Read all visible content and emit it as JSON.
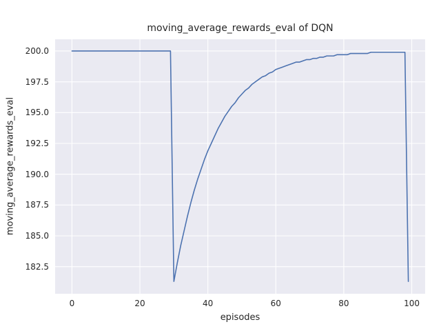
{
  "figure": {
    "title": "moving_average_rewards_eval of DQN",
    "xlabel": "episodes",
    "ylabel": "moving_average_rewards_eval"
  },
  "style": {
    "figure_bg": "#ffffff",
    "axes_bg": "#eaeaf2",
    "grid_color": "#ffffff",
    "line_color": "#4c72b0",
    "text_color": "#262626"
  },
  "chart_data": {
    "type": "line",
    "title": "moving_average_rewards_eval of DQN",
    "xlabel": "episodes",
    "ylabel": "moving_average_rewards_eval",
    "xlim": [
      -4.95,
      103.95
    ],
    "ylim": [
      180.3,
      200.95
    ],
    "x_ticks": [
      0,
      20,
      40,
      60,
      80,
      100
    ],
    "x_tick_labels": [
      "0",
      "20",
      "40",
      "60",
      "80",
      "100"
    ],
    "y_ticks": [
      182.5,
      185.0,
      187.5,
      190.0,
      192.5,
      195.0,
      197.5,
      200.0
    ],
    "y_tick_labels": [
      "182.5",
      "185.0",
      "187.5",
      "190.0",
      "192.5",
      "195.0",
      "197.5",
      "200.0"
    ],
    "grid": true,
    "legend": false,
    "series": [
      {
        "name": "DQN moving average eval reward",
        "x": [
          0,
          1,
          2,
          3,
          4,
          5,
          6,
          7,
          8,
          9,
          10,
          11,
          12,
          13,
          14,
          15,
          16,
          17,
          18,
          19,
          20,
          21,
          22,
          23,
          24,
          25,
          26,
          27,
          28,
          29,
          30,
          31,
          32,
          33,
          34,
          35,
          36,
          37,
          38,
          39,
          40,
          41,
          42,
          43,
          44,
          45,
          46,
          47,
          48,
          49,
          50,
          51,
          52,
          53,
          54,
          55,
          56,
          57,
          58,
          59,
          60,
          61,
          62,
          63,
          64,
          65,
          66,
          67,
          68,
          69,
          70,
          71,
          72,
          73,
          74,
          75,
          76,
          77,
          78,
          79,
          80,
          81,
          82,
          83,
          84,
          85,
          86,
          87,
          88,
          89,
          90,
          91,
          92,
          93,
          94,
          95,
          96,
          97,
          98,
          99
        ],
        "y": [
          200.0,
          200.0,
          200.0,
          200.0,
          200.0,
          200.0,
          200.0,
          200.0,
          200.0,
          200.0,
          200.0,
          200.0,
          200.0,
          200.0,
          200.0,
          200.0,
          200.0,
          200.0,
          200.0,
          200.0,
          200.0,
          200.0,
          200.0,
          200.0,
          200.0,
          200.0,
          200.0,
          200.0,
          200.0,
          200.0,
          181.3,
          182.8,
          184.2,
          185.4,
          186.6,
          187.7,
          188.7,
          189.6,
          190.4,
          191.2,
          191.9,
          192.5,
          193.1,
          193.7,
          194.2,
          194.7,
          195.1,
          195.5,
          195.8,
          196.2,
          196.5,
          196.8,
          197.0,
          197.3,
          197.5,
          197.7,
          197.9,
          198.0,
          198.2,
          198.3,
          198.5,
          198.6,
          198.7,
          198.8,
          198.9,
          199.0,
          199.1,
          199.1,
          199.2,
          199.3,
          199.3,
          199.4,
          199.4,
          199.5,
          199.5,
          199.6,
          199.6,
          199.6,
          199.7,
          199.7,
          199.7,
          199.7,
          199.8,
          199.8,
          199.8,
          199.8,
          199.8,
          199.8,
          199.9,
          199.9,
          199.9,
          199.9,
          199.9,
          199.9,
          199.9,
          199.9,
          199.9,
          199.9,
          199.9,
          181.3
        ]
      }
    ]
  }
}
